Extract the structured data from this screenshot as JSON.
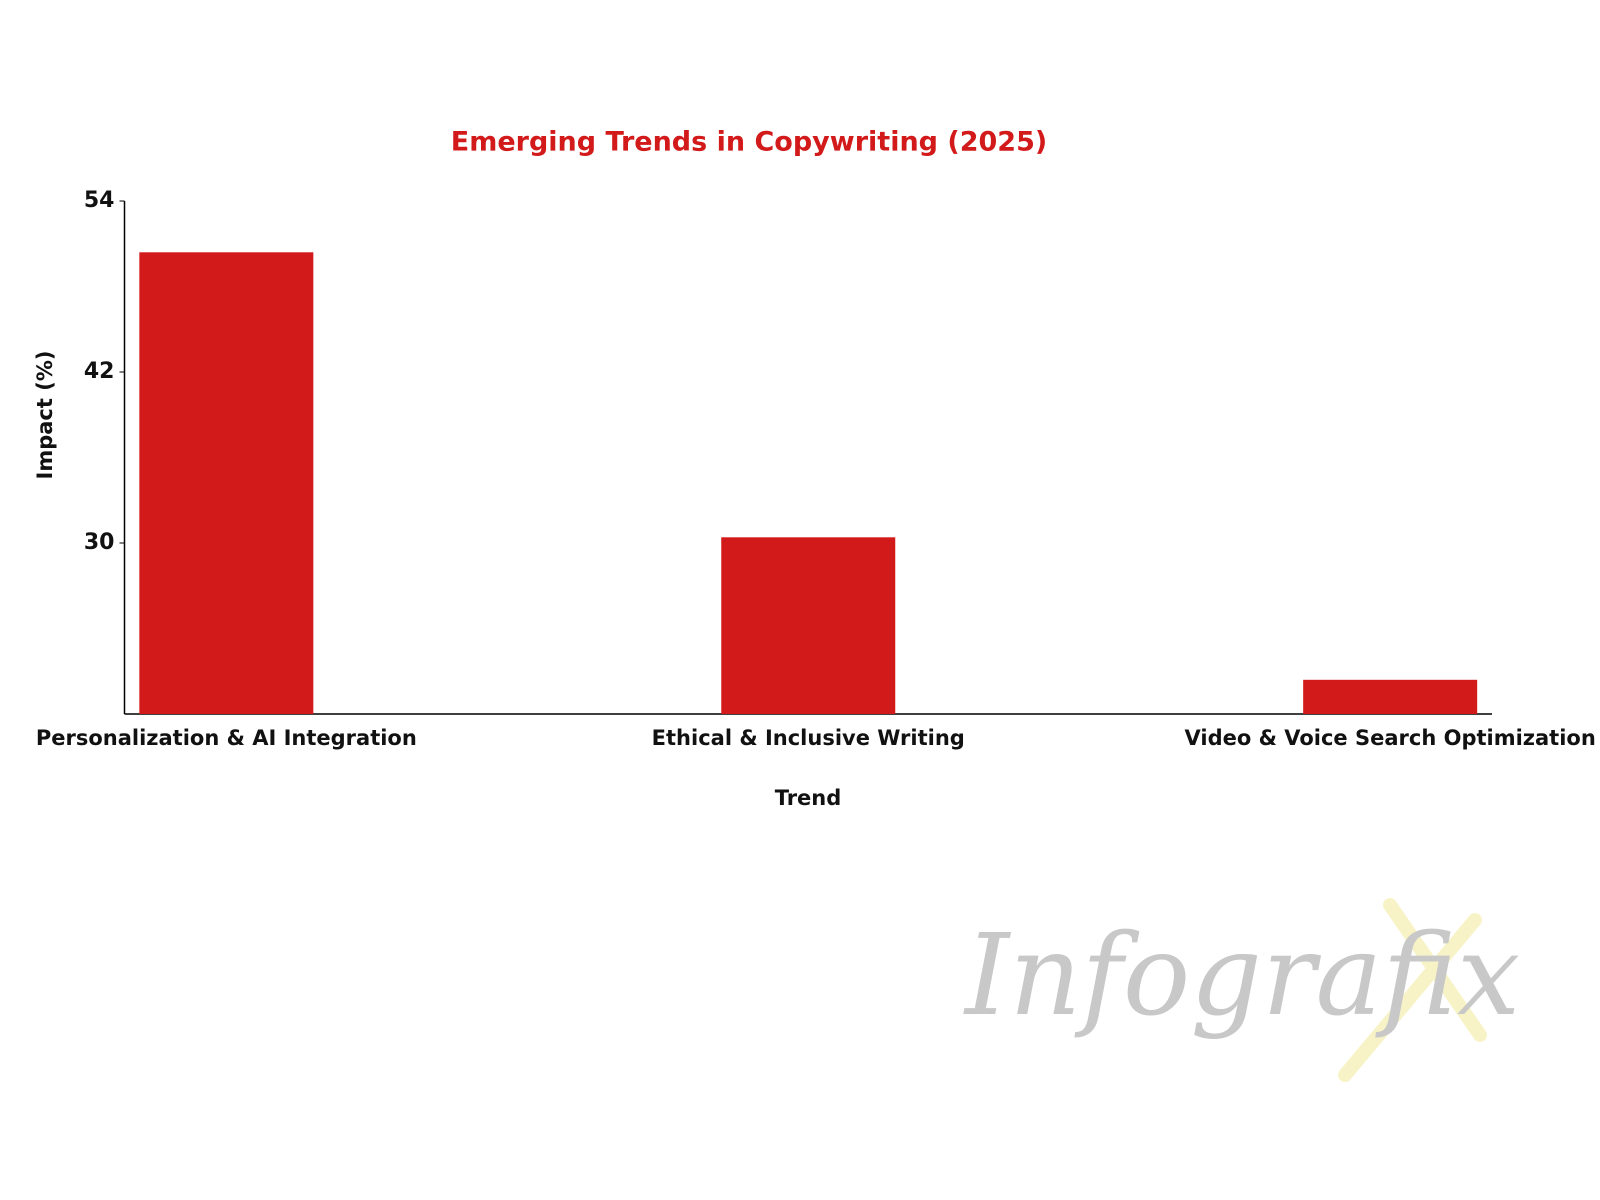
{
  "chart_data": {
    "type": "bar",
    "title": "Emerging Trends in Copywriting (2025)",
    "x_label": "Trend",
    "y_label": "Impact (%)",
    "categories": [
      "Personalization & AI Integration",
      "Ethical & Inclusive Writing",
      "Video & Voice Search Optimization"
    ],
    "values": [
      50.4,
      30.4,
      20.4
    ],
    "color": "#d31a1a",
    "ylim": [
      18,
      54
    ],
    "yticks": [
      30,
      42,
      54
    ],
    "grid": false
  },
  "watermark": "Infografix"
}
